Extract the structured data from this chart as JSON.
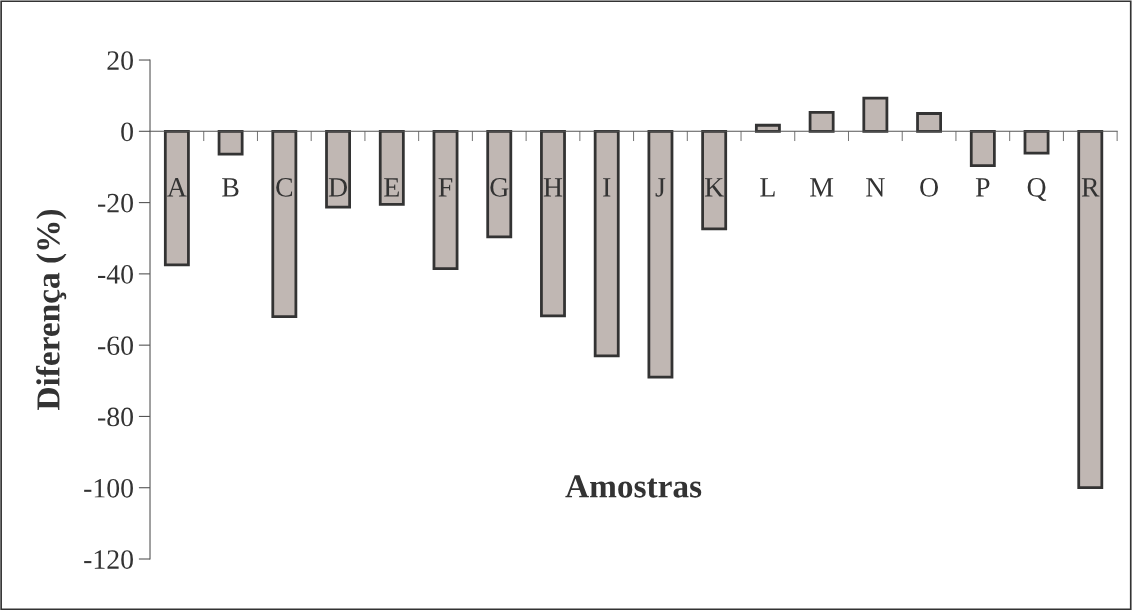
{
  "chart_data": {
    "type": "bar",
    "xlabel": "Amostras",
    "ylabel": "Diferença (%)",
    "categories": [
      "A",
      "B",
      "C",
      "D",
      "E",
      "F",
      "G",
      "H",
      "I",
      "J",
      "K",
      "L",
      "M",
      "N",
      "O",
      "P",
      "Q",
      "R"
    ],
    "values": [
      -37.5,
      -6.4,
      -52,
      -21.3,
      -20.5,
      -38.5,
      -29.6,
      -51.8,
      -63,
      -69,
      -27.4,
      1.7,
      5.3,
      9.3,
      5,
      -9.6,
      -6.1,
      -100
    ],
    "color": "#c0b7b3",
    "ylim": [
      -120,
      20
    ],
    "yticks": [
      -120,
      -100,
      -80,
      -60,
      -40,
      -20,
      0,
      20
    ],
    "grid": false,
    "legend": false
  }
}
